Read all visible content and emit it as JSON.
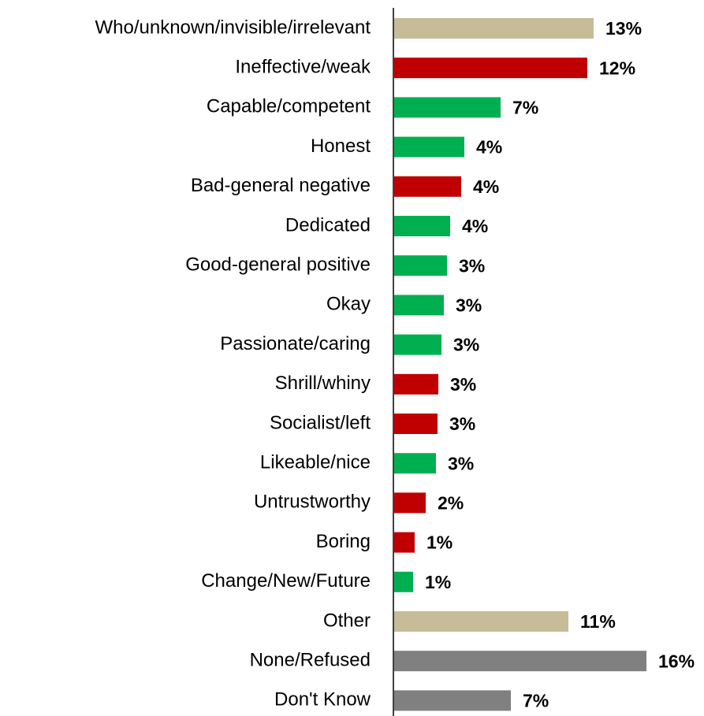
{
  "chart_data": {
    "type": "bar",
    "orientation": "horizontal",
    "categories": [
      "Who/unknown/invisible/irrelevant",
      "Ineffective/weak",
      "Capable/competent",
      "Honest",
      "Bad-general negative",
      "Dedicated",
      "Good-general positive",
      "Okay",
      "Passionate/caring",
      "Shrill/whiny",
      "Socialist/left",
      "Likeable/nice",
      "Untrustworthy",
      "Boring",
      "Change/New/Future",
      "Other",
      "None/Refused",
      "Don't Know"
    ],
    "values": [
      12.65,
      12.25,
      6.75,
      4.45,
      4.25,
      3.55,
      3.35,
      3.15,
      3.0,
      2.8,
      2.75,
      2.65,
      2.0,
      1.3,
      1.2,
      11.05,
      16,
      7.4
    ],
    "value_labels": [
      "13%",
      "12%",
      "7%",
      "4%",
      "4%",
      "4%",
      "3%",
      "3%",
      "3%",
      "3%",
      "3%",
      "3%",
      "2%",
      "1%",
      "1%",
      "11%",
      "16%",
      "7%"
    ],
    "colors": [
      "#c6bc97",
      "#c00000",
      "#00b050",
      "#00b050",
      "#c00000",
      "#00b050",
      "#00b050",
      "#00b050",
      "#00b050",
      "#c00000",
      "#c00000",
      "#00b050",
      "#c00000",
      "#c00000",
      "#00b050",
      "#c6bc97",
      "#808080",
      "#808080"
    ],
    "xlim": [
      0,
      19.7
    ]
  }
}
